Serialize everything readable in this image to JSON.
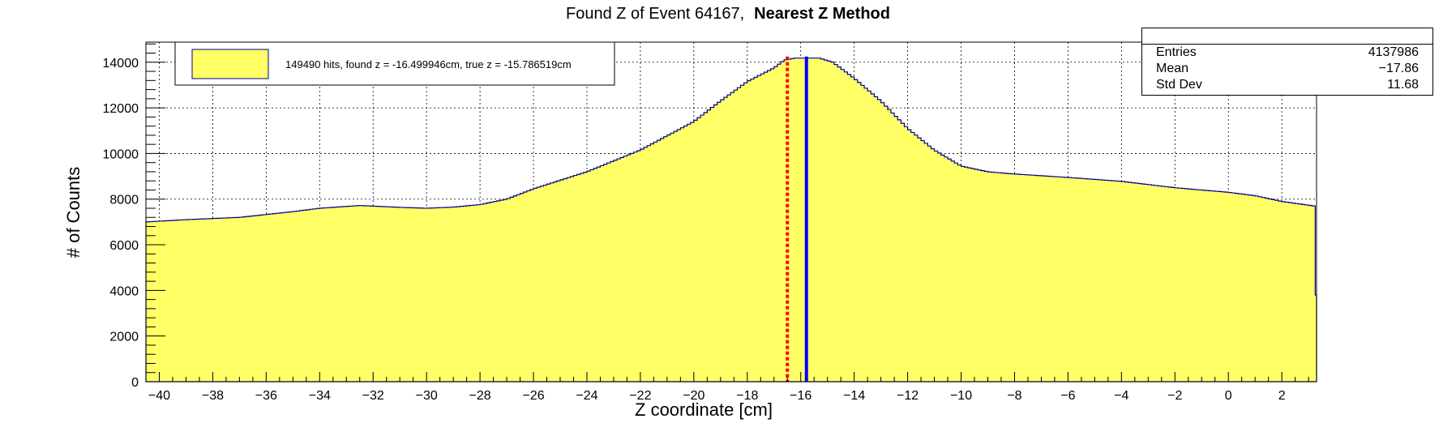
{
  "chart_data": {
    "type": "histogram",
    "title_prefix": "Found Z of Event 64167,",
    "title_bold": "Nearest Z Method",
    "xlabel": "Z coordinate [cm]",
    "ylabel": "# of Counts",
    "xlim": [
      -40.5,
      3.3
    ],
    "ylim": [
      0,
      14880
    ],
    "x_ticks": [
      -40,
      -38,
      -36,
      -34,
      -32,
      -30,
      -28,
      -26,
      -24,
      -22,
      -20,
      -18,
      -16,
      -14,
      -12,
      -10,
      -8,
      -6,
      -4,
      -2,
      0,
      2
    ],
    "y_ticks": [
      0,
      2000,
      4000,
      6000,
      8000,
      10000,
      12000,
      14000
    ],
    "grid": true,
    "fill_color": "#ffff66",
    "line_color": "#00008b",
    "bin_width": 0.125,
    "profile": [
      [
        -40.5,
        7000
      ],
      [
        -39,
        7100
      ],
      [
        -37,
        7200
      ],
      [
        -35,
        7450
      ],
      [
        -34,
        7600
      ],
      [
        -32.5,
        7720
      ],
      [
        -31,
        7640
      ],
      [
        -30,
        7600
      ],
      [
        -29,
        7650
      ],
      [
        -28,
        7760
      ],
      [
        -27,
        8000
      ],
      [
        -26,
        8450
      ],
      [
        -24,
        9200
      ],
      [
        -22,
        10150
      ],
      [
        -20,
        11400
      ],
      [
        -19,
        12300
      ],
      [
        -18,
        13150
      ],
      [
        -17,
        13750
      ],
      [
        -16.6,
        14100
      ],
      [
        -16.2,
        14180
      ],
      [
        -15.3,
        14180
      ],
      [
        -14.8,
        14000
      ],
      [
        -14,
        13300
      ],
      [
        -13,
        12300
      ],
      [
        -12,
        11100
      ],
      [
        -11,
        10150
      ],
      [
        -10,
        9450
      ],
      [
        -9,
        9200
      ],
      [
        -8,
        9100
      ],
      [
        -6,
        8950
      ],
      [
        -4,
        8780
      ],
      [
        -2,
        8500
      ],
      [
        0,
        8300
      ],
      [
        1,
        8150
      ],
      [
        2,
        7900
      ],
      [
        3.2,
        7700
      ]
    ],
    "last_bin_value": 3800,
    "markers": [
      {
        "name": "found z",
        "x": -16.499946,
        "color": "#ff0000",
        "style": "dashed"
      },
      {
        "name": "true z",
        "x": -15.786519,
        "color": "#0000ff",
        "style": "solid"
      }
    ],
    "legend": {
      "placement": "top-left",
      "text": "149490 hits, found z = -16.499946cm, true z = -15.786519cm"
    },
    "stats": {
      "placement": "top-right",
      "rows": [
        {
          "label": "Entries",
          "value": "4137986"
        },
        {
          "label": "Mean",
          "value": "−17.86"
        },
        {
          "label": "Std Dev",
          "value": "11.68"
        }
      ]
    }
  }
}
